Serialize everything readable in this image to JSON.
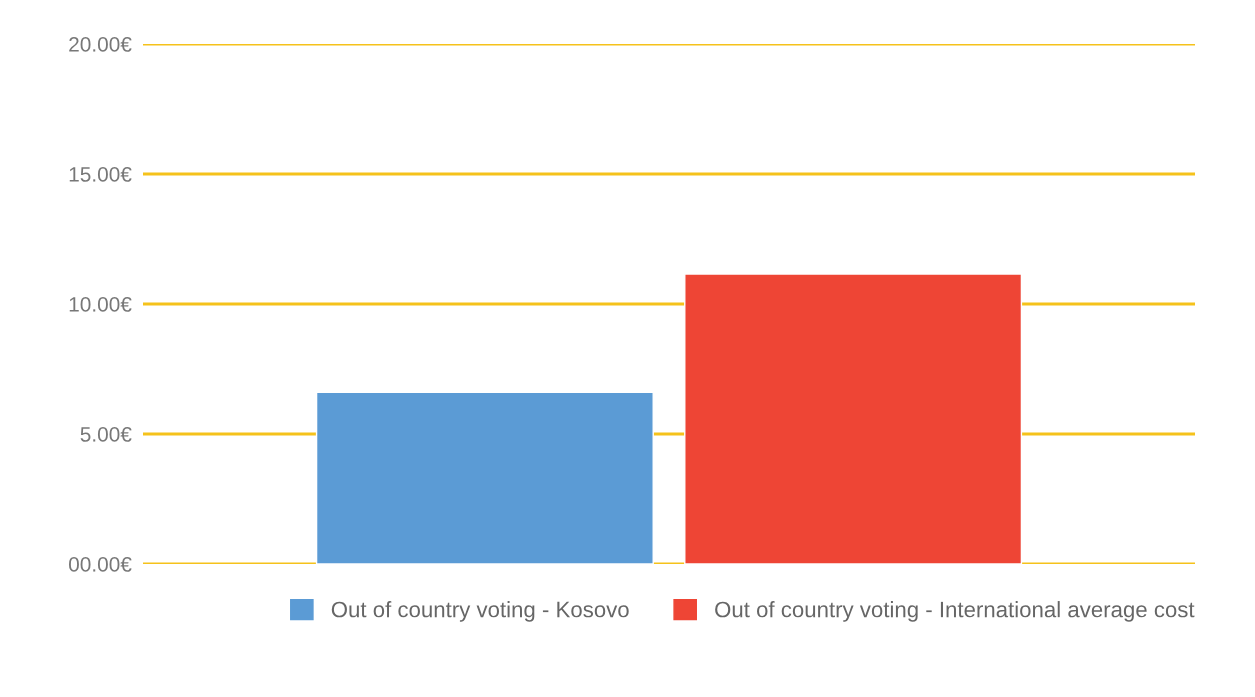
{
  "chart_data": {
    "type": "bar",
    "categories": [
      null
    ],
    "series": [
      {
        "name": "Out of country voting - Kosovo",
        "color": "#5b9bd5",
        "values": [
          6.6
        ]
      },
      {
        "name": "Out of country voting - International average cost",
        "color": "#ee4535",
        "values": [
          11.15
        ]
      }
    ],
    "ylim": [
      0,
      20
    ],
    "yticks": [
      {
        "value": 0,
        "label": "00.00€"
      },
      {
        "value": 5,
        "label": "5.00€"
      },
      {
        "value": 10,
        "label": "10.00€"
      },
      {
        "value": 15,
        "label": "15.00€"
      },
      {
        "value": 20,
        "label": "20.00€"
      }
    ],
    "grid": "y",
    "legend": "bottom",
    "tick_labels": "y"
  }
}
